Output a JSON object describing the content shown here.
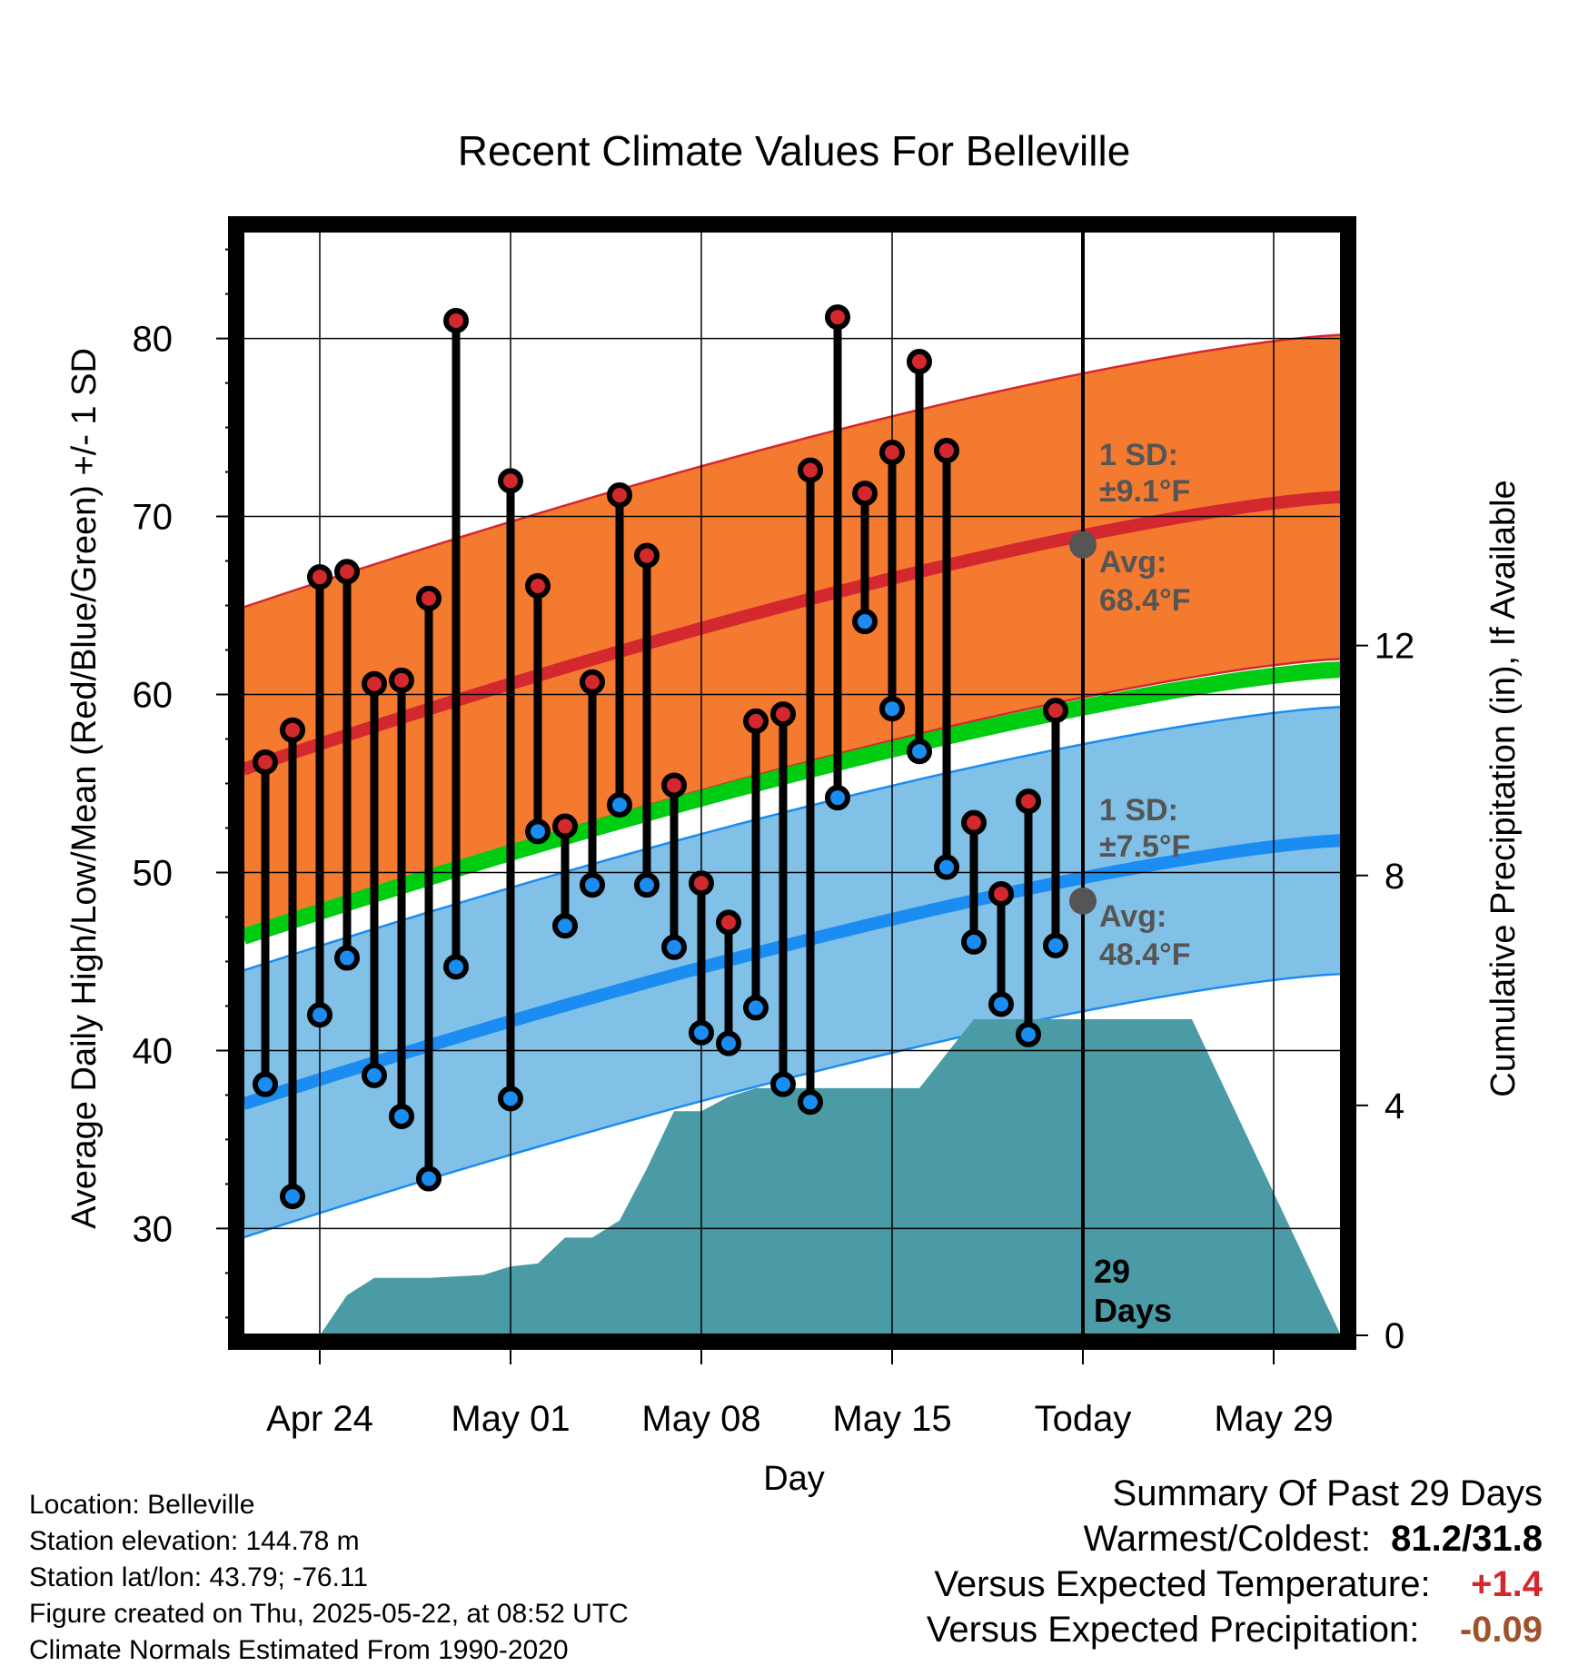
{
  "chart_data": {
    "type": "line",
    "title": "Recent Climate Values For Belleville",
    "xlabel": "Day",
    "ylabel": "Average Daily High/Low/Mean (Red/Blue/Green) +/- 1 SD",
    "y2label": "Cumulative Precipitation (in), If Available",
    "ylim": [
      24,
      86
    ],
    "y2lim": [
      0,
      19.2
    ],
    "yticks": [
      30,
      40,
      50,
      60,
      70,
      80
    ],
    "y2ticks": [
      0,
      4,
      8,
      12
    ],
    "xlim": [
      0,
      35
    ],
    "xtick_labels": [
      {
        "day": 3,
        "label": "Apr 24"
      },
      {
        "day": 10,
        "label": "May 01"
      },
      {
        "day": 17,
        "label": "May 08"
      },
      {
        "day": 24,
        "label": "May 15"
      },
      {
        "day": 31,
        "label": "Today"
      },
      {
        "day": 38,
        "label": "May 29"
      }
    ],
    "days": [
      "Apr 22",
      "Apr 23",
      "Apr 24",
      "Apr 25",
      "Apr 26",
      "Apr 27",
      "Apr 28",
      "Apr 29",
      "Apr 30",
      "May 01",
      "May 02",
      "May 03",
      "May 04",
      "May 05",
      "May 06",
      "May 07",
      "May 08",
      "May 09",
      "May 10",
      "May 11",
      "May 12",
      "May 13",
      "May 14",
      "May 15",
      "May 16",
      "May 17",
      "May 18",
      "May 19",
      "May 20",
      "May 21",
      "May 22",
      "May 23",
      "May 24",
      "May 25",
      "May 26",
      "May 27",
      "May 28",
      "May 29",
      "May 30",
      "May 31",
      "Jun 01",
      "Jun 02"
    ],
    "obs_highs": [
      56.2,
      58.0,
      66.6,
      66.9,
      60.6,
      60.8,
      65.4,
      81.0,
      null,
      72.0,
      66.1,
      52.6,
      60.7,
      71.2,
      67.8,
      54.9,
      49.4,
      47.2,
      58.5,
      58.9,
      72.6,
      81.2,
      71.3,
      73.6,
      78.7,
      73.7,
      52.8,
      48.8,
      54.0,
      59.1
    ],
    "obs_lows": [
      38.1,
      31.8,
      42.0,
      45.2,
      38.6,
      36.3,
      32.8,
      44.7,
      null,
      37.3,
      52.3,
      47.0,
      49.3,
      53.8,
      49.3,
      45.8,
      41.0,
      40.4,
      42.4,
      38.1,
      37.1,
      54.2,
      64.1,
      59.2,
      56.8,
      50.3,
      46.1,
      42.6,
      40.9,
      45.9
    ],
    "normal_high": {
      "start": 55.8,
      "end": 71.1
    },
    "normal_low": {
      "start": 37.0,
      "end": 51.8
    },
    "normal_mean": {
      "start": 46.4,
      "end": 61.4
    },
    "high_sd": 9.1,
    "low_sd": 7.5,
    "precip_cumulative": [
      [
        0,
        0
      ],
      [
        3,
        0
      ],
      [
        4,
        0.7
      ],
      [
        5,
        1.0
      ],
      [
        7,
        1.0
      ],
      [
        9,
        1.05
      ],
      [
        10,
        1.2
      ],
      [
        11,
        1.25
      ],
      [
        12,
        1.7
      ],
      [
        13,
        1.7
      ],
      [
        14,
        2.0
      ],
      [
        15,
        2.9
      ],
      [
        16,
        3.9
      ],
      [
        17,
        3.9
      ],
      [
        18,
        4.15
      ],
      [
        19,
        4.3
      ],
      [
        20,
        4.3
      ],
      [
        24,
        4.3
      ],
      [
        25,
        4.3
      ],
      [
        27,
        5.5
      ],
      [
        35,
        5.5
      ]
    ],
    "annotations": {
      "high_sd_label": "1 SD:",
      "high_sd_value": "±9.1",
      "high_avg_label": "Avg:",
      "high_avg_value": "68.4",
      "low_sd_label": "1 SD:",
      "low_sd_value": "±7.5",
      "low_avg_label": "Avg:",
      "low_avg_value": "48.4",
      "unit": "°F",
      "days_count": "29",
      "days_word": "Days",
      "high_avg_num": 68.4,
      "low_avg_num": 48.4
    },
    "colors": {
      "high_band": "#f47a30",
      "high_line": "#d4282f",
      "low_band": "#82c1e7",
      "low_line": "#1a8cf2",
      "mean_line": "#00cc11",
      "precip": "#4a9ba5",
      "high_dot": "#d4282f",
      "low_dot": "#1a8cf2",
      "annotation": "#555555"
    }
  },
  "info": {
    "location": "Location: Belleville",
    "elevation": "Station elevation: 144.78 m",
    "latlon": "Station lat/lon: 43.79; -76.11",
    "created": "Figure created on Thu, 2025-05-22, at 08:52 UTC",
    "normals": "Climate Normals Estimated From 1990-2020"
  },
  "summary": {
    "title": "Summary Of Past 29 Days",
    "warm_cold_label": "Warmest/Coldest:",
    "warm_cold_value": "81.2/31.8",
    "temp_label": "Versus Expected Temperature:",
    "temp_value": "+1.4",
    "temp_color": "#d4282f",
    "precip_label": "Versus Expected Precipitation:",
    "precip_value": "-0.09",
    "precip_color": "#a0522d"
  }
}
